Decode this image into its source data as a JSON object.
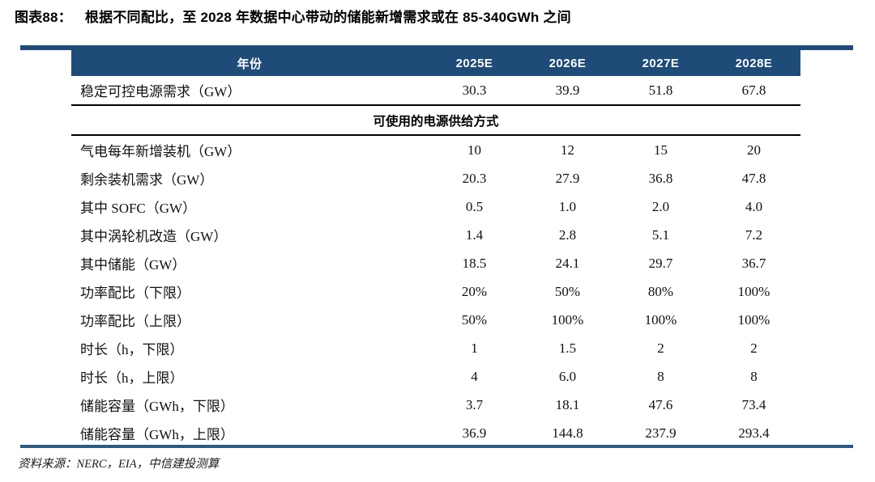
{
  "page": {
    "figure_label": "图表88：",
    "figure_title": "根据不同配比，至 2028 年数据中心带动的储能新增需求或在 85-340GWh 之间",
    "source_note": "资料来源：NERC，EIA，中信建投测算"
  },
  "table": {
    "header": {
      "label": "年份",
      "years": [
        "2025E",
        "2026E",
        "2027E",
        "2028E"
      ]
    },
    "demand_row": {
      "label": "稳定可控电源需求（GW）",
      "values": [
        "30.3",
        "39.9",
        "51.8",
        "67.8"
      ]
    },
    "section_header": "可使用的电源供给方式",
    "rows": [
      {
        "label": "气电每年新增装机（GW）",
        "values": [
          "10",
          "12",
          "15",
          "20"
        ]
      },
      {
        "label": "剩余装机需求（GW）",
        "values": [
          "20.3",
          "27.9",
          "36.8",
          "47.8"
        ]
      },
      {
        "label": "其中 SOFC（GW）",
        "values": [
          "0.5",
          "1.0",
          "2.0",
          "4.0"
        ]
      },
      {
        "label": "其中涡轮机改造（GW）",
        "values": [
          "1.4",
          "2.8",
          "5.1",
          "7.2"
        ]
      },
      {
        "label": "其中储能（GW）",
        "values": [
          "18.5",
          "24.1",
          "29.7",
          "36.7"
        ]
      },
      {
        "label": "功率配比（下限）",
        "values": [
          "20%",
          "50%",
          "80%",
          "100%"
        ]
      },
      {
        "label": "功率配比（上限）",
        "values": [
          "50%",
          "100%",
          "100%",
          "100%"
        ]
      },
      {
        "label": "时长（h，下限）",
        "values": [
          "1",
          "1.5",
          "2",
          "2"
        ]
      },
      {
        "label": "时长（h，上限）",
        "values": [
          "4",
          "6.0",
          "8",
          "8"
        ]
      },
      {
        "label": "储能容量（GWh，下限）",
        "values": [
          "3.7",
          "18.1",
          "47.6",
          "73.4"
        ]
      },
      {
        "label": "储能容量（GWh，上限）",
        "values": [
          "36.9",
          "144.8",
          "237.9",
          "293.4"
        ]
      }
    ]
  },
  "colors": {
    "header_navy": "#1F4B78",
    "rule_navy": "#2A5A87",
    "divider_black": "#000000",
    "text_black": "#111111"
  }
}
